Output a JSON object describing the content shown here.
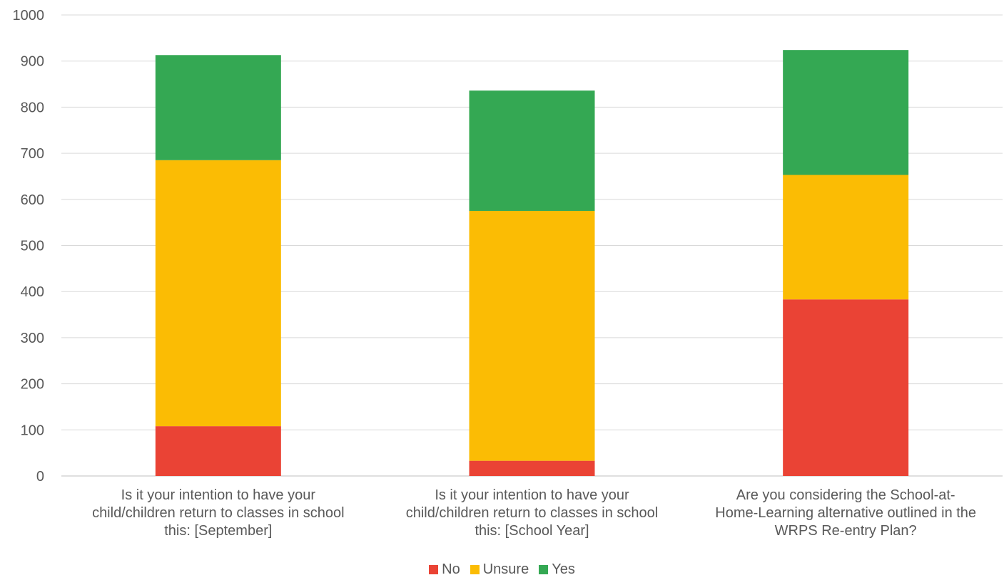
{
  "chart_data": {
    "type": "bar",
    "stacked": true,
    "categories": [
      [
        "Is it your intention to have your",
        "child/children return to classes in school",
        "this: [September]"
      ],
      [
        "Is it your intention to have your",
        "child/children return to classes in school",
        "this: [School Year]"
      ],
      [
        "Are you considering the School-at-",
        "Home-Learning alternative outlined in the",
        "WRPS Re-entry Plan?"
      ]
    ],
    "series": [
      {
        "name": "No",
        "color": "#EA4335",
        "values": [
          108,
          33,
          383
        ]
      },
      {
        "name": "Unsure",
        "color": "#FBBC04",
        "values": [
          577,
          542,
          270
        ]
      },
      {
        "name": "Yes",
        "color": "#34A853",
        "values": [
          228,
          261,
          271
        ]
      }
    ],
    "ylim": [
      0,
      1000
    ],
    "yticks": [
      0,
      100,
      200,
      300,
      400,
      500,
      600,
      700,
      800,
      900,
      1000
    ],
    "grid": true,
    "legend_position": "bottom"
  }
}
